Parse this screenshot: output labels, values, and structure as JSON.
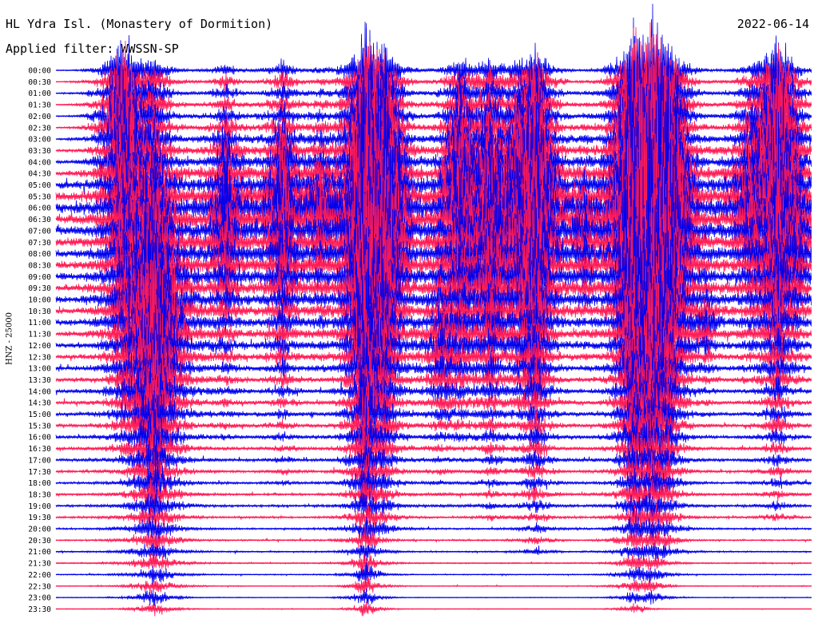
{
  "header": {
    "station": "HL Ydra Isl. (Monastery of Dormition)",
    "filter": "Applied filter: WWSSN-SP",
    "date": "2022-06-14"
  },
  "colors": {
    "even_row": "#0000ee",
    "odd_row": "#ff1a55",
    "background": "#ffffff"
  },
  "chart_data": {
    "type": "line",
    "chart_kind": "helicorder seismogram",
    "ylabel": "HNZ - 25000",
    "row_interval_minutes": 30,
    "tick_labels": [
      "00:00",
      "00:30",
      "01:00",
      "01:30",
      "02:00",
      "02:30",
      "03:00",
      "03:30",
      "04:00",
      "04:30",
      "05:00",
      "05:30",
      "06:00",
      "06:30",
      "07:00",
      "07:30",
      "08:00",
      "08:30",
      "09:00",
      "09:30",
      "10:00",
      "10:30",
      "11:00",
      "11:30",
      "12:00",
      "12:30",
      "13:00",
      "13:30",
      "14:00",
      "14:30",
      "15:00",
      "15:30",
      "16:00",
      "16:30",
      "17:00",
      "17:30",
      "18:00",
      "18:30",
      "19:00",
      "19:30",
      "20:00",
      "20:30",
      "21:00",
      "21:30",
      "22:00",
      "22:30",
      "23:00",
      "23:30"
    ],
    "noise_level": [
      0.3,
      0.4,
      0.4,
      0.4,
      0.5,
      0.6,
      0.8,
      1.0,
      1.5,
      2.5,
      3.5,
      4.5,
      5.0,
      5.0,
      4.5,
      4.0,
      4.0,
      4.0,
      3.8,
      3.5,
      3.2,
      3.0,
      2.8,
      2.6,
      2.4,
      2.2,
      2.0,
      1.9,
      1.8,
      1.7,
      1.7,
      1.6,
      1.5,
      1.5,
      1.4,
      1.3,
      1.2,
      1.2,
      1.2,
      1.1,
      1.0,
      0.9,
      0.8,
      0.7,
      0.6,
      0.5,
      0.4,
      0.3
    ],
    "events": [
      {
        "x": 0.09,
        "peak_row": 5,
        "amplitude": 120,
        "width": 0.015,
        "extent_rows": 28
      },
      {
        "x": 0.13,
        "peak_row": 22,
        "amplitude": 150,
        "width": 0.02,
        "extent_rows": 30
      },
      {
        "x": 0.225,
        "peak_row": 12,
        "amplitude": 70,
        "width": 0.015,
        "extent_rows": 20
      },
      {
        "x": 0.3,
        "peak_row": 12,
        "amplitude": 80,
        "width": 0.015,
        "extent_rows": 24
      },
      {
        "x": 0.35,
        "peak_row": 12,
        "amplitude": 50,
        "width": 0.012,
        "extent_rows": 14
      },
      {
        "x": 0.41,
        "peak_row": 12,
        "amplitude": 200,
        "width": 0.014,
        "extent_rows": 40
      },
      {
        "x": 0.435,
        "peak_row": 12,
        "amplitude": 150,
        "width": 0.015,
        "extent_rows": 28
      },
      {
        "x": 0.51,
        "peak_row": 24,
        "amplitude": 40,
        "width": 0.015,
        "extent_rows": 14
      },
      {
        "x": 0.535,
        "peak_row": 10,
        "amplitude": 100,
        "width": 0.015,
        "extent_rows": 22
      },
      {
        "x": 0.575,
        "peak_row": 13,
        "amplitude": 100,
        "width": 0.015,
        "extent_rows": 26
      },
      {
        "x": 0.615,
        "peak_row": 11,
        "amplitude": 70,
        "width": 0.013,
        "extent_rows": 18
      },
      {
        "x": 0.635,
        "peak_row": 12,
        "amplitude": 150,
        "width": 0.015,
        "extent_rows": 30
      },
      {
        "x": 0.7,
        "peak_row": 14,
        "amplitude": 40,
        "width": 0.013,
        "extent_rows": 12
      },
      {
        "x": 0.765,
        "peak_row": 11,
        "amplitude": 200,
        "width": 0.014,
        "extent_rows": 36
      },
      {
        "x": 0.79,
        "peak_row": 10,
        "amplitude": 200,
        "width": 0.015,
        "extent_rows": 36
      },
      {
        "x": 0.81,
        "peak_row": 12,
        "amplitude": 150,
        "width": 0.015,
        "extent_rows": 30
      },
      {
        "x": 0.86,
        "peak_row": 22,
        "amplitude": 30,
        "width": 0.012,
        "extent_rows": 8
      },
      {
        "x": 0.92,
        "peak_row": 11,
        "amplitude": 50,
        "width": 0.02,
        "extent_rows": 16
      },
      {
        "x": 0.955,
        "peak_row": 7,
        "amplitude": 150,
        "width": 0.015,
        "extent_rows": 32
      },
      {
        "x": 0.98,
        "peak_row": 15,
        "amplitude": 40,
        "width": 0.015,
        "extent_rows": 12
      }
    ]
  }
}
